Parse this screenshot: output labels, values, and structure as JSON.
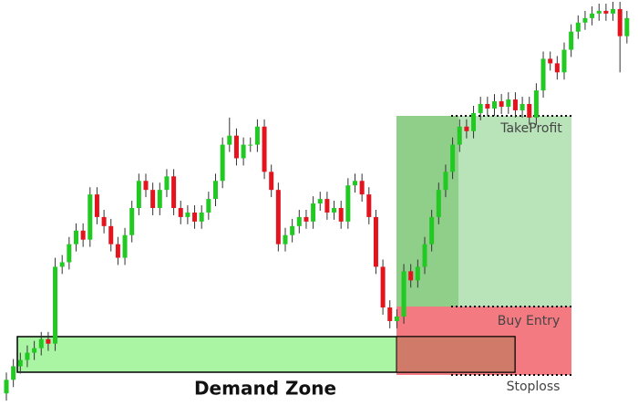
{
  "chart_data": {
    "type": "candlestick",
    "annotations": {
      "zone": "Demand Zone",
      "take_profit": "TakeProfit",
      "entry": "Buy Entry",
      "stop": "Stoploss"
    },
    "up_color": "#22c922",
    "down_color": "#e3141e",
    "ylim": [
      0,
      460
    ],
    "open": [
      25,
      40,
      55,
      62,
      70,
      75,
      85,
      80,
      165,
      170,
      190,
      205,
      195,
      245,
      220,
      210,
      190,
      175,
      200,
      230,
      260,
      250,
      230,
      250,
      265,
      230,
      220,
      225,
      215,
      225,
      240,
      260,
      300,
      310,
      285,
      300,
      300,
      320,
      270,
      250,
      190,
      200,
      210,
      220,
      215,
      235,
      240,
      225,
      230,
      215,
      255,
      260,
      245,
      220,
      165,
      120,
      105,
      110,
      160,
      150,
      165,
      190,
      220,
      250,
      270,
      300,
      320,
      315,
      335,
      345,
      340,
      348,
      342,
      350,
      338,
      345,
      330,
      360,
      395,
      390,
      380,
      405,
      425,
      435,
      440,
      445,
      448,
      445,
      450,
      420
    ],
    "close": [
      40,
      55,
      62,
      70,
      75,
      85,
      80,
      165,
      170,
      190,
      205,
      195,
      245,
      220,
      210,
      190,
      175,
      200,
      230,
      260,
      250,
      230,
      250,
      265,
      230,
      220,
      225,
      215,
      225,
      240,
      260,
      300,
      310,
      285,
      300,
      300,
      320,
      270,
      250,
      190,
      200,
      210,
      220,
      215,
      235,
      240,
      225,
      230,
      215,
      255,
      260,
      245,
      220,
      165,
      120,
      105,
      110,
      160,
      150,
      165,
      190,
      220,
      250,
      270,
      300,
      320,
      315,
      335,
      345,
      340,
      348,
      342,
      350,
      338,
      345,
      330,
      360,
      395,
      390,
      380,
      405,
      425,
      435,
      440,
      445,
      448,
      445,
      450,
      420,
      440
    ],
    "high": [
      48,
      63,
      70,
      78,
      83,
      93,
      93,
      175,
      178,
      198,
      213,
      213,
      253,
      253,
      228,
      218,
      198,
      208,
      238,
      268,
      268,
      258,
      258,
      273,
      273,
      238,
      233,
      233,
      233,
      248,
      268,
      308,
      330,
      318,
      308,
      308,
      328,
      328,
      278,
      258,
      208,
      218,
      228,
      228,
      243,
      248,
      248,
      238,
      238,
      263,
      268,
      268,
      253,
      228,
      173,
      128,
      118,
      168,
      168,
      173,
      198,
      228,
      258,
      278,
      308,
      328,
      328,
      343,
      353,
      353,
      356,
      356,
      358,
      358,
      353,
      353,
      368,
      403,
      403,
      398,
      413,
      433,
      443,
      448,
      453,
      456,
      456,
      458,
      458,
      448
    ],
    "low": [
      17,
      32,
      47,
      54,
      62,
      67,
      72,
      72,
      157,
      162,
      182,
      187,
      187,
      212,
      202,
      182,
      167,
      167,
      192,
      222,
      242,
      222,
      222,
      242,
      222,
      212,
      212,
      207,
      207,
      217,
      232,
      252,
      292,
      277,
      277,
      292,
      292,
      262,
      242,
      182,
      182,
      192,
      202,
      207,
      207,
      227,
      217,
      217,
      207,
      207,
      247,
      237,
      212,
      157,
      112,
      97,
      97,
      102,
      142,
      142,
      157,
      182,
      212,
      242,
      262,
      292,
      307,
      307,
      327,
      332,
      332,
      334,
      334,
      330,
      330,
      322,
      322,
      352,
      382,
      372,
      372,
      397,
      417,
      427,
      432,
      437,
      437,
      437,
      380,
      412
    ]
  }
}
